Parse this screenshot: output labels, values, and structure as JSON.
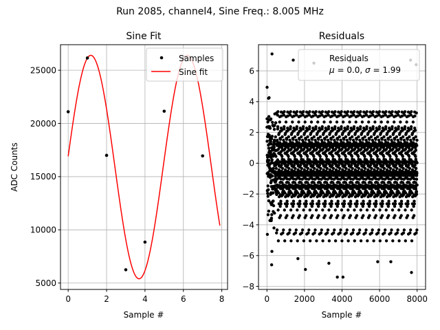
{
  "figure": {
    "suptitle": "Run 2085, channel4, Sine Freq.: 8.005 MHz"
  },
  "chart_data": [
    {
      "type": "line",
      "title": "Sine Fit",
      "xlabel": "Sample #",
      "ylabel": "ADC Counts",
      "xlim": [
        -0.4,
        8.3
      ],
      "ylim": [
        4400,
        27400
      ],
      "xticks": [
        0,
        2,
        4,
        6,
        8
      ],
      "yticks": [
        5000,
        10000,
        15000,
        20000,
        25000
      ],
      "grid": true,
      "legend_position": "upper-right",
      "series": [
        {
          "name": "Samples",
          "kind": "scatter",
          "color": "#000000",
          "x": [
            0,
            1,
            2,
            3,
            4,
            5,
            6,
            7
          ],
          "y": [
            21100,
            26150,
            17000,
            6250,
            8850,
            21150,
            26250,
            16950
          ]
        },
        {
          "name": "Sine fit",
          "kind": "line",
          "color": "#ff0000",
          "function": {
            "offset": 15900,
            "amplitude": 10500,
            "period": 5.024,
            "phase_shift": 0.077,
            "x_start": 0,
            "x_end": 7.9
          }
        }
      ]
    },
    {
      "type": "scatter",
      "title": "Residuals",
      "xlabel": "Sample #",
      "ylabel": "",
      "xlim": [
        -450,
        8450
      ],
      "ylim": [
        -8.2,
        7.7
      ],
      "xticks": [
        0,
        2000,
        4000,
        6000,
        8000
      ],
      "yticks": [
        -8,
        -6,
        -4,
        -2,
        0,
        2,
        4,
        6
      ],
      "grid": true,
      "legend_position": "upper-right",
      "series": [
        {
          "name": "Residuals",
          "color": "#000000",
          "distribution": {
            "mean": 0.0,
            "sigma": 1.99,
            "n_points": 8000,
            "x_range": [
              0,
              7999
            ]
          },
          "outliers": [
            [
              270,
              7.1
            ],
            [
              2500,
              6.5
            ],
            [
              1400,
              6.7
            ],
            [
              4450,
              6.6
            ],
            [
              7650,
              6.7
            ],
            [
              7950,
              6.4
            ],
            [
              3750,
              -7.4
            ],
            [
              7700,
              -7.1
            ],
            [
              4050,
              -7.4
            ],
            [
              250,
              -6.6
            ],
            [
              2050,
              -6.9
            ],
            [
              1650,
              -6.2
            ],
            [
              3300,
              -6.5
            ],
            [
              6600,
              -6.4
            ],
            [
              5900,
              -6.4
            ]
          ]
        }
      ]
    }
  ]
}
